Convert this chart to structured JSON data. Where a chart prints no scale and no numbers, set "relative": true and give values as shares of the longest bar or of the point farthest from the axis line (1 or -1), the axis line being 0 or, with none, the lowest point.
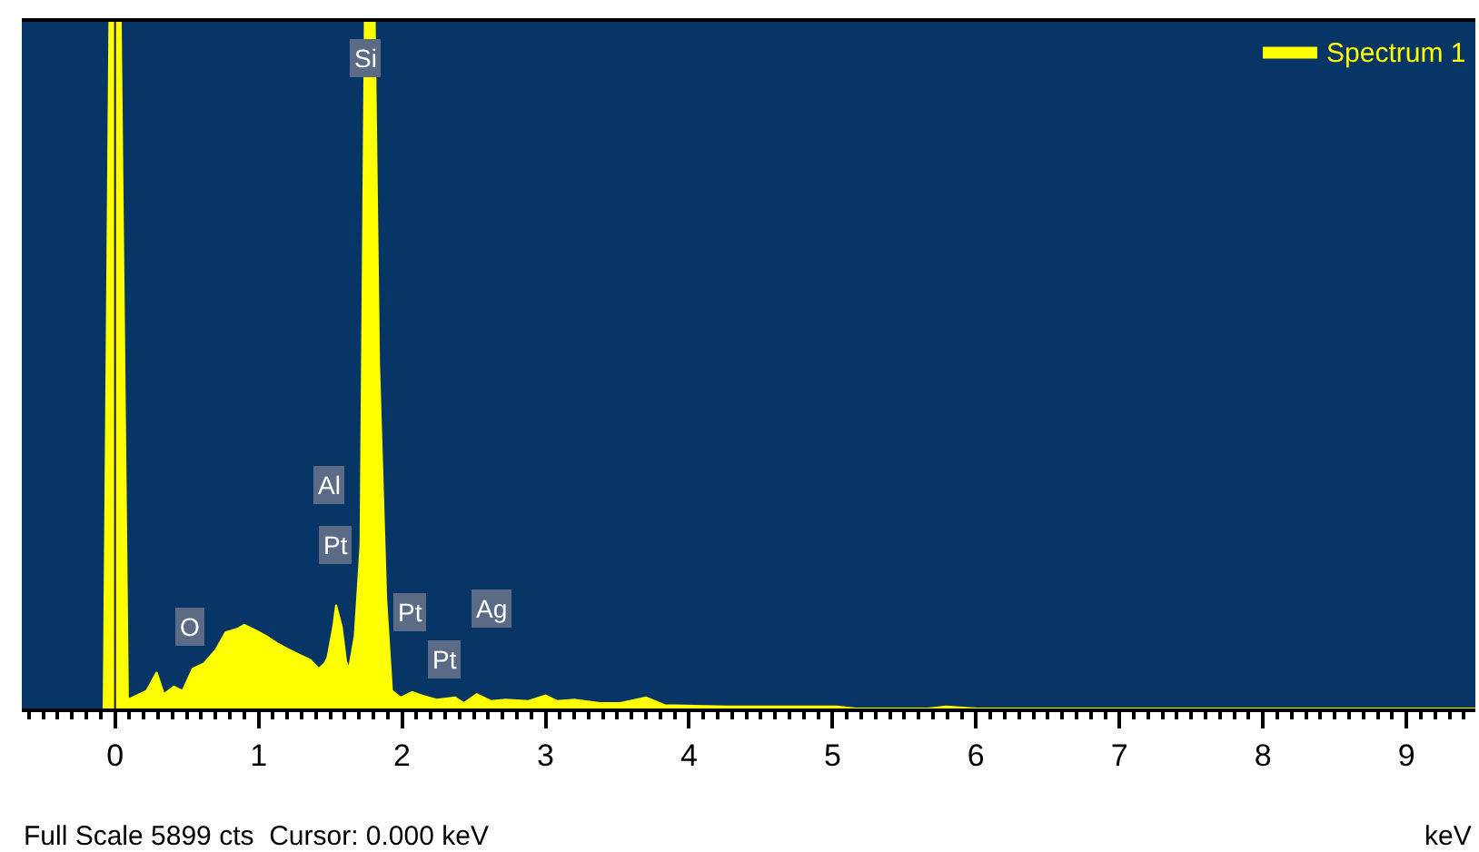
{
  "chart_data": {
    "type": "area",
    "relative": true,
    "xlabel": "keV",
    "legend": "top right",
    "xlim": [
      -0.65,
      9.48
    ],
    "xticks": [
      0,
      1,
      2,
      3,
      4,
      5,
      6,
      7,
      8,
      9
    ],
    "series": [
      {
        "name": "Spectrum 1",
        "color": "#ffff00",
        "x": [
          -0.08,
          -0.04,
          0.04,
          0.09,
          0.15,
          0.22,
          0.29,
          0.34,
          0.41,
          0.47,
          0.54,
          0.62,
          0.7,
          0.77,
          0.85,
          0.9,
          0.98,
          1.05,
          1.13,
          1.2,
          1.28,
          1.36,
          1.42,
          1.46,
          1.48,
          1.52,
          1.54,
          1.58,
          1.61,
          1.63,
          1.67,
          1.71,
          1.74,
          1.81,
          1.84,
          1.89,
          1.93,
          1.99,
          2.07,
          2.14,
          2.24,
          2.37,
          2.43,
          2.52,
          2.62,
          2.72,
          2.88,
          3.0,
          3.08,
          3.2,
          3.38,
          3.52,
          3.7,
          3.83,
          4.27,
          5.03,
          5.16,
          5.67,
          5.79,
          6.0,
          9.48
        ],
        "values": [
          0,
          1,
          1,
          0.013,
          0.019,
          0.026,
          0.053,
          0.021,
          0.032,
          0.026,
          0.058,
          0.066,
          0.085,
          0.111,
          0.116,
          0.122,
          0.114,
          0.106,
          0.095,
          0.087,
          0.079,
          0.071,
          0.058,
          0.066,
          0.074,
          0.119,
          0.151,
          0.119,
          0.069,
          0.058,
          0.106,
          0.238,
          1,
          1,
          0.503,
          0.159,
          0.026,
          0.016,
          0.024,
          0.019,
          0.013,
          0.016,
          0.008,
          0.021,
          0.011,
          0.013,
          0.011,
          0.019,
          0.011,
          0.013,
          0.008,
          0.008,
          0.016,
          0.005,
          0.003,
          0.003,
          0,
          0,
          0.003,
          0,
          0
        ]
      }
    ],
    "ref_lines": [
      {
        "axis": "x",
        "value": 0,
        "color": "#1a1a1a"
      }
    ],
    "annotations": [
      {
        "text": "Si",
        "x": 1.74,
        "y": 0.947
      },
      {
        "text": "Al",
        "x": 1.49,
        "y": 0.325
      },
      {
        "text": "Pt",
        "x": 1.54,
        "y": 0.238
      },
      {
        "text": "O",
        "x": 0.52,
        "y": 0.119
      },
      {
        "text": "Pt",
        "x": 2.05,
        "y": 0.14
      },
      {
        "text": "Pt",
        "x": 2.3,
        "y": 0.071
      },
      {
        "text": "Ag",
        "x": 2.62,
        "y": 0.145
      },
      "Full Scale 5899 cts  Cursor: 0.000 keV"
    ]
  }
}
